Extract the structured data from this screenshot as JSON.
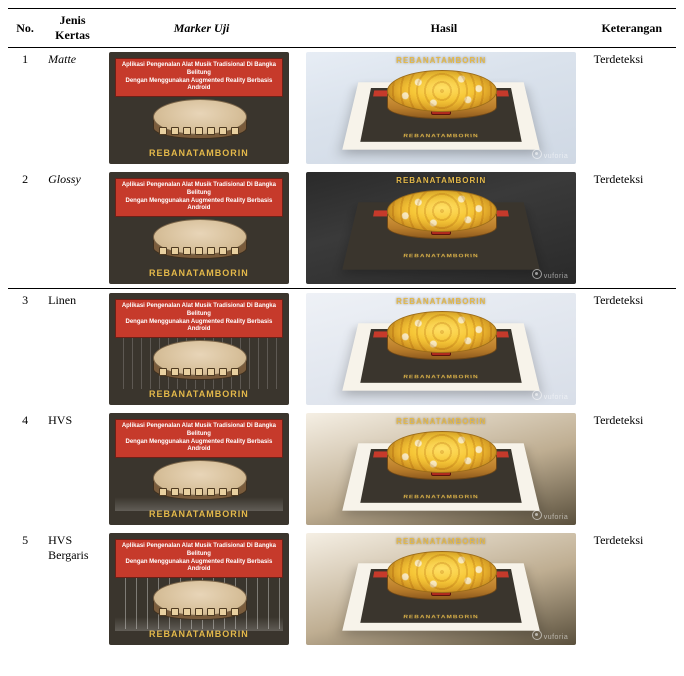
{
  "headers": {
    "no": "No.",
    "jenis": "Jenis Kertas",
    "marker": "Marker Uji",
    "hasil": "Hasil",
    "ket": "Keterangan"
  },
  "marker_banner_line1": "Aplikasi Pengenalan Alat Musik Tradisional Di Bangka Belitung",
  "marker_banner_line2": "Dengan Menggunakan Augmented Reality Berbasis Android",
  "marker_label": "REBANATAMBORIN",
  "watermark": "vuforia",
  "rows": [
    {
      "no": "1",
      "jenis": "Matte",
      "jenis_italic": true,
      "variant": "matte",
      "ket": "Terdeteksi"
    },
    {
      "no": "2",
      "jenis": "Glossy",
      "jenis_italic": true,
      "variant": "glossy",
      "ket": "Terdeteksi"
    },
    {
      "no": "3",
      "jenis": "Linen",
      "jenis_italic": false,
      "variant": "linen",
      "ket": "Terdeteksi"
    },
    {
      "no": "4",
      "jenis": "HVS",
      "jenis_italic": false,
      "variant": "hvs",
      "ket": "Terdeteksi"
    },
    {
      "no": "5",
      "jenis": "HVS Bergaris",
      "jenis_italic": false,
      "variant": "bergaris hvs",
      "ket": "Terdeteksi"
    }
  ]
}
